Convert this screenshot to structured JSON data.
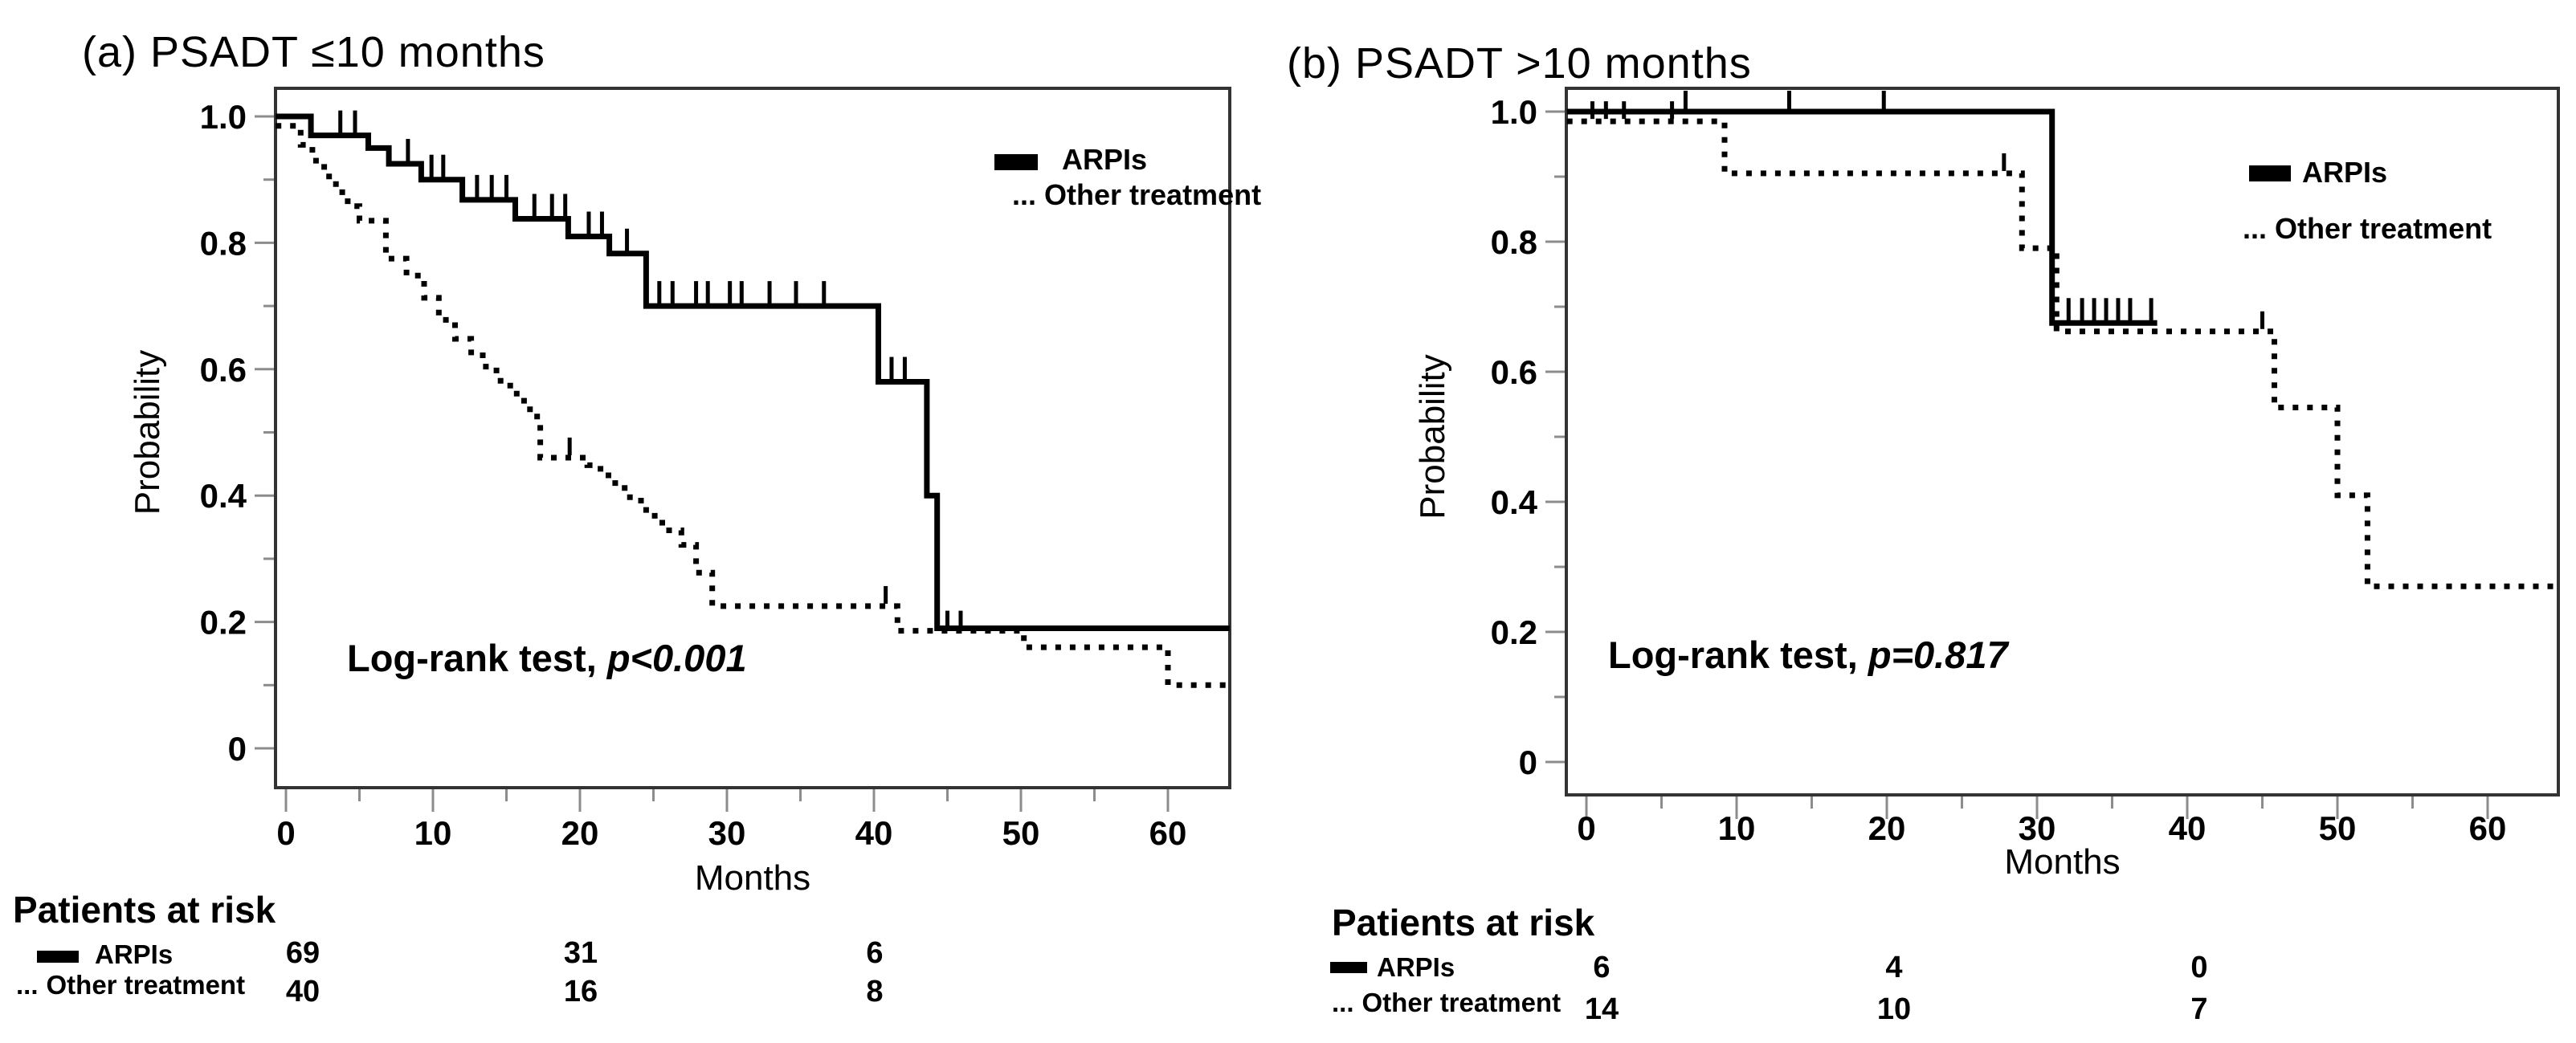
{
  "chart_data": [
    {
      "type": "line",
      "subtype": "kaplan_meier",
      "panel": "a",
      "title": "(a) PSADT ≤10 months",
      "xlabel": "Months",
      "ylabel": "Probability",
      "x_ticks": [
        0,
        10,
        20,
        30,
        40,
        50,
        60
      ],
      "y_ticks": [
        "1.0",
        "0.8",
        "0.6",
        "0.4",
        "0.2",
        "0"
      ],
      "xlim": [
        0,
        64
      ],
      "ylim": [
        0,
        1
      ],
      "grid": false,
      "legend_position": "upper right",
      "annotation": {
        "prefix": "Log-rank test, ",
        "p_value": "p<0.001"
      },
      "legend": [
        {
          "label": "ARPIs",
          "style": "solid",
          "marker": ""
        },
        {
          "label": "Other treatment",
          "style": "dotted",
          "marker": "..."
        }
      ],
      "series": [
        {
          "name": "ARPIs",
          "style": "solid",
          "end": 64.2,
          "steps": [
            [
              -0.7,
              1.0
            ],
            [
              1.7,
              0.97
            ],
            [
              5.6,
              0.95
            ],
            [
              7.0,
              0.925
            ],
            [
              9.2,
              0.9
            ],
            [
              12.0,
              0.868
            ],
            [
              15.6,
              0.838
            ],
            [
              19.2,
              0.81
            ],
            [
              22.0,
              0.783
            ],
            [
              24.5,
              0.7
            ],
            [
              40.3,
              0.58
            ],
            [
              43.6,
              0.4
            ],
            [
              44.3,
              0.19
            ]
          ],
          "censors": [
            [
              3.7,
              0.97
            ],
            [
              4.7,
              0.97
            ],
            [
              8.3,
              0.925
            ],
            [
              9.9,
              0.9
            ],
            [
              10.7,
              0.9
            ],
            [
              13.0,
              0.868
            ],
            [
              14.0,
              0.868
            ],
            [
              15.0,
              0.868
            ],
            [
              16.9,
              0.838
            ],
            [
              18.1,
              0.838
            ],
            [
              19.0,
              0.838
            ],
            [
              20.6,
              0.81
            ],
            [
              21.5,
              0.81
            ],
            [
              23.2,
              0.783
            ],
            [
              25.4,
              0.7
            ],
            [
              26.3,
              0.7
            ],
            [
              27.9,
              0.7
            ],
            [
              28.7,
              0.7
            ],
            [
              30.2,
              0.7
            ],
            [
              31.0,
              0.7
            ],
            [
              32.9,
              0.7
            ],
            [
              34.7,
              0.7
            ],
            [
              36.6,
              0.7
            ],
            [
              41.2,
              0.58
            ],
            [
              42.1,
              0.58
            ]
          ]
        },
        {
          "name": "Other treatment",
          "style": "dotted",
          "end": 64.2,
          "steps": [
            [
              -0.7,
              0.985
            ],
            [
              1.0,
              0.955
            ],
            [
              1.8,
              0.93
            ],
            [
              2.6,
              0.905
            ],
            [
              3.4,
              0.88
            ],
            [
              4.2,
              0.858
            ],
            [
              5.0,
              0.835
            ],
            [
              6.8,
              0.775
            ],
            [
              8.2,
              0.748
            ],
            [
              9.4,
              0.713
            ],
            [
              10.4,
              0.678
            ],
            [
              11.5,
              0.648
            ],
            [
              12.6,
              0.622
            ],
            [
              13.6,
              0.598
            ],
            [
              14.6,
              0.574
            ],
            [
              15.7,
              0.55
            ],
            [
              16.6,
              0.525
            ],
            [
              17.3,
              0.46
            ],
            [
              20.5,
              0.448
            ],
            [
              21.4,
              0.432
            ],
            [
              22.4,
              0.412
            ],
            [
              23.4,
              0.392
            ],
            [
              24.5,
              0.368
            ],
            [
              25.6,
              0.345
            ],
            [
              26.9,
              0.322
            ],
            [
              27.9,
              0.278
            ],
            [
              29.0,
              0.225
            ],
            [
              41.6,
              0.186
            ],
            [
              50.2,
              0.16
            ],
            [
              60.0,
              0.1
            ]
          ],
          "censors": [
            [
              19.3,
              0.46
            ],
            [
              40.8,
              0.225
            ],
            [
              45.0,
              0.186
            ],
            [
              45.9,
              0.186
            ]
          ]
        }
      ],
      "risk_table": {
        "title": "Patients at risk",
        "rows": [
          {
            "label": "ARPIs",
            "marker": "",
            "style": "solid",
            "values": [
              "69",
              "31",
              "6"
            ]
          },
          {
            "label": "Other treatment",
            "marker": "...",
            "style": "dotted",
            "values": [
              "40",
              "16",
              "8"
            ]
          }
        ]
      }
    },
    {
      "type": "line",
      "subtype": "kaplan_meier",
      "panel": "b",
      "title": "(b) PSADT >10 months",
      "xlabel": "Months",
      "ylabel": "Probability",
      "x_ticks": [
        0,
        10,
        20,
        30,
        40,
        50,
        60
      ],
      "y_ticks": [
        "1.0",
        "0.8",
        "0.6",
        "0.4",
        "0.2",
        "0"
      ],
      "xlim": [
        0,
        64
      ],
      "ylim": [
        0,
        1
      ],
      "grid": false,
      "legend_position": "upper right",
      "annotation": {
        "prefix": "Log-rank test, ",
        "p_value": "p=0.817"
      },
      "legend": [
        {
          "label": "ARPIs",
          "style": "solid",
          "marker": ""
        },
        {
          "label": "Other treatment",
          "style": "dotted",
          "marker": "..."
        }
      ],
      "series": [
        {
          "name": "ARPIs",
          "style": "solid",
          "end": 38.0,
          "steps": [
            [
              -1.3,
              1.0
            ],
            [
              31.0,
              0.675
            ]
          ],
          "censors": [
            [
              6.6,
              1.0
            ],
            [
              13.5,
              1.0
            ],
            [
              19.8,
              1.0
            ],
            [
              32.1,
              0.675
            ],
            [
              33.0,
              0.675
            ],
            [
              33.8,
              0.675
            ],
            [
              34.6,
              0.675
            ],
            [
              35.4,
              0.675
            ],
            [
              36.2,
              0.675
            ],
            [
              37.6,
              0.675
            ]
          ]
        },
        {
          "name": "Other treatment",
          "style": "dotted",
          "end": 64.7,
          "steps": [
            [
              -1.3,
              0.985
            ],
            [
              9.2,
              0.905
            ],
            [
              29.0,
              0.79
            ],
            [
              31.3,
              0.662
            ],
            [
              45.8,
              0.545
            ],
            [
              50.0,
              0.41
            ],
            [
              52.0,
              0.27
            ]
          ],
          "censors": [
            [
              0.4,
              0.985
            ],
            [
              1.3,
              0.985
            ],
            [
              2.5,
              0.985
            ],
            [
              5.7,
              0.985
            ],
            [
              27.8,
              0.905
            ],
            [
              45.0,
              0.662
            ]
          ]
        }
      ],
      "risk_table": {
        "title": "Patients at risk",
        "rows": [
          {
            "label": "ARPIs",
            "marker": "",
            "style": "solid",
            "values": [
              "6",
              "4",
              "0"
            ]
          },
          {
            "label": "Other treatment",
            "marker": "...",
            "style": "dotted",
            "values": [
              "14",
              "10",
              "7"
            ]
          }
        ]
      }
    }
  ]
}
